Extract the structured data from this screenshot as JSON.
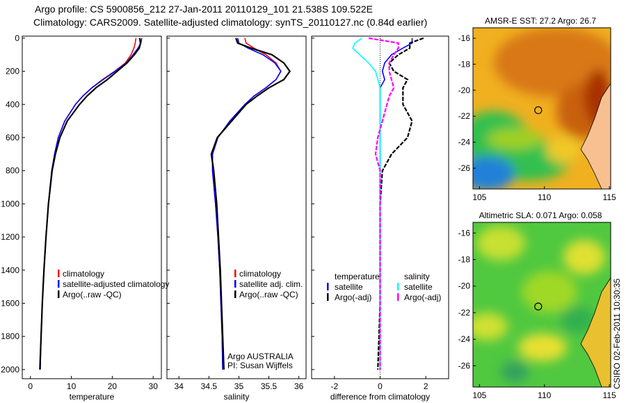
{
  "title": {
    "line1": "Argo profile: CS 5900856_212 27-Jan-2011 20110129_101 21.538S 109.522E",
    "line2": "Climatology: CARS2009. Satellite-adjusted climatology: synTS_20110127.nc (0.84d earlier)"
  },
  "footer": "CSIRO 02-Feb-2011 10:30:35",
  "colors": {
    "clim": "#ff0000",
    "sat": "#0000ff",
    "argo": "#000000",
    "sal_sat": "#00ffff",
    "sal_argo": "#ff00ff"
  },
  "chart_data": [
    {
      "type": "line",
      "xlabel": "temperature",
      "xlim": [
        -2,
        32
      ],
      "ylim": [
        2055,
        -12
      ],
      "xticks": [
        0,
        10,
        20,
        30
      ],
      "yticks": [
        0,
        200,
        400,
        600,
        800,
        1000,
        1200,
        1400,
        1600,
        1800,
        2000
      ],
      "legend": [
        "climatology",
        "satellite-adjusted climatology",
        "Argo(..raw -QC)"
      ],
      "depth": [
        0,
        30,
        60,
        100,
        150,
        200,
        250,
        300,
        350,
        400,
        500,
        600,
        700,
        800,
        1000,
        1200,
        1400,
        1600,
        1800,
        2000
      ],
      "series": [
        {
          "name": "climatology",
          "values": [
            25.8,
            25.6,
            25.3,
            24.6,
            23.2,
            20.6,
            17.6,
            15,
            12.8,
            11,
            8.4,
            6.8,
            5.9,
            5.2,
            4.4,
            3.8,
            3.3,
            2.9,
            2.6,
            2.4
          ]
        },
        {
          "name": "satellite-adjusted climatology",
          "values": [
            27.2,
            27,
            26.3,
            25.1,
            23.4,
            20.7,
            17.8,
            15,
            12.8,
            11,
            8.4,
            6.8,
            5.9,
            5.2,
            4.4,
            3.8,
            3.3,
            2.9,
            2.6,
            2.4
          ]
        },
        {
          "name": "Argo(..raw -QC)",
          "values": [
            26.7,
            26.9,
            26.6,
            25.4,
            23.6,
            21.2,
            18.8,
            16,
            13.8,
            12,
            9,
            7.2,
            6.1,
            5.3,
            4.4,
            3.8,
            3.3,
            2.9,
            2.6,
            2.3
          ]
        }
      ]
    },
    {
      "type": "line",
      "xlabel": "salinity",
      "xlim": [
        33.8,
        36.12
      ],
      "ylim": [
        2055,
        -12
      ],
      "xticks": [
        34,
        34.5,
        35,
        35.5,
        36
      ],
      "legend": [
        "climatology",
        "satellite adj. clim.",
        "Argo(..raw -QC)"
      ],
      "annotation": [
        "Argo AUSTRALIA",
        "PI: Susan Wijffels"
      ],
      "depth": [
        0,
        30,
        60,
        100,
        150,
        200,
        250,
        300,
        350,
        400,
        500,
        600,
        700,
        800,
        1000,
        1200,
        1400,
        1600,
        1800,
        2000
      ],
      "series": [
        {
          "name": "climatology",
          "values": [
            35.1,
            35.12,
            35.25,
            35.45,
            35.62,
            35.7,
            35.62,
            35.45,
            35.25,
            35.1,
            34.85,
            34.65,
            34.56,
            34.56,
            34.61,
            34.65,
            34.68,
            34.7,
            34.72,
            34.73
          ]
        },
        {
          "name": "satellite adj. clim.",
          "values": [
            34.98,
            35.0,
            35.15,
            35.4,
            35.6,
            35.7,
            35.62,
            35.45,
            35.25,
            35.1,
            34.85,
            34.65,
            34.56,
            34.56,
            34.61,
            34.65,
            34.68,
            34.7,
            34.72,
            34.73
          ]
        },
        {
          "name": "Argo(..raw -QC)",
          "values": [
            34.95,
            34.98,
            35.2,
            35.55,
            35.75,
            35.85,
            35.75,
            35.5,
            35.3,
            35.12,
            34.88,
            34.64,
            34.54,
            34.58,
            34.63,
            34.66,
            34.69,
            34.71,
            34.73,
            34.75
          ]
        }
      ]
    },
    {
      "type": "line",
      "xlabel": "difference from climatology",
      "xlim": [
        -3,
        3
      ],
      "ylim": [
        2055,
        -12
      ],
      "xticks": [
        -2,
        0,
        2
      ],
      "legend_temperature": {
        "title": "temperature",
        "items": [
          "satellite",
          "Argo(-adj)"
        ]
      },
      "legend_salinity": {
        "title": "salinity",
        "items": [
          "satellite",
          "Argo(-adj)"
        ]
      },
      "depth": [
        0,
        30,
        60,
        100,
        150,
        200,
        250,
        300,
        350,
        400,
        500,
        600,
        700,
        800,
        1000,
        1200,
        1400,
        1600,
        1800,
        2000
      ],
      "series": [
        {
          "name": "temperature satellite",
          "values": [
            1.4,
            1.4,
            1.0,
            0.5,
            0.2,
            0.1,
            0.2,
            0,
            0,
            0,
            0,
            0,
            0,
            0,
            0,
            0,
            0,
            0,
            0,
            0
          ]
        },
        {
          "name": "temperature Argo(-adj)",
          "values": [
            1.9,
            1.3,
            1.3,
            0.8,
            0.4,
            0.6,
            1.2,
            1.0,
            1.0,
            1.0,
            1.4,
            1.2,
            0.5,
            0.1,
            0,
            0,
            0,
            0,
            -0.05,
            -0.1
          ]
        },
        {
          "name": "salinity satellite",
          "values": [
            -0.8,
            -1.1,
            -1.2,
            -0.9,
            -0.5,
            -0.2,
            -0.1,
            0,
            0,
            0,
            0,
            0,
            0,
            0,
            0,
            0,
            0,
            0,
            0,
            0
          ]
        },
        {
          "name": "salinity Argo(-adj)",
          "values": [
            -0.5,
            0.8,
            0.8,
            0.6,
            0.4,
            0.4,
            0.5,
            0.6,
            0.4,
            0.3,
            0.1,
            -0.1,
            -0.2,
            0,
            0,
            0,
            0,
            0,
            0,
            0
          ]
        }
      ]
    },
    {
      "type": "heatmap",
      "title": "AMSR-E SST: 27.2 Argo: 26.7",
      "xlim": [
        104.5,
        115.1
      ],
      "ylim": [
        -27.6,
        -15.2
      ],
      "xticks": [
        105,
        110,
        115
      ],
      "yticks": [
        -16,
        -18,
        -20,
        -22,
        -24,
        -26
      ],
      "marker": [
        109.522,
        -21.538
      ]
    },
    {
      "type": "heatmap",
      "title": "Altimetric SLA: 0.071 Argo: 0.058",
      "xlim": [
        104.5,
        115.1
      ],
      "ylim": [
        -27.6,
        -15.2
      ],
      "xticks": [
        105,
        110,
        115
      ],
      "yticks": [
        -16,
        -18,
        -20,
        -22,
        -24,
        -26
      ],
      "marker": [
        109.522,
        -21.538
      ]
    }
  ]
}
